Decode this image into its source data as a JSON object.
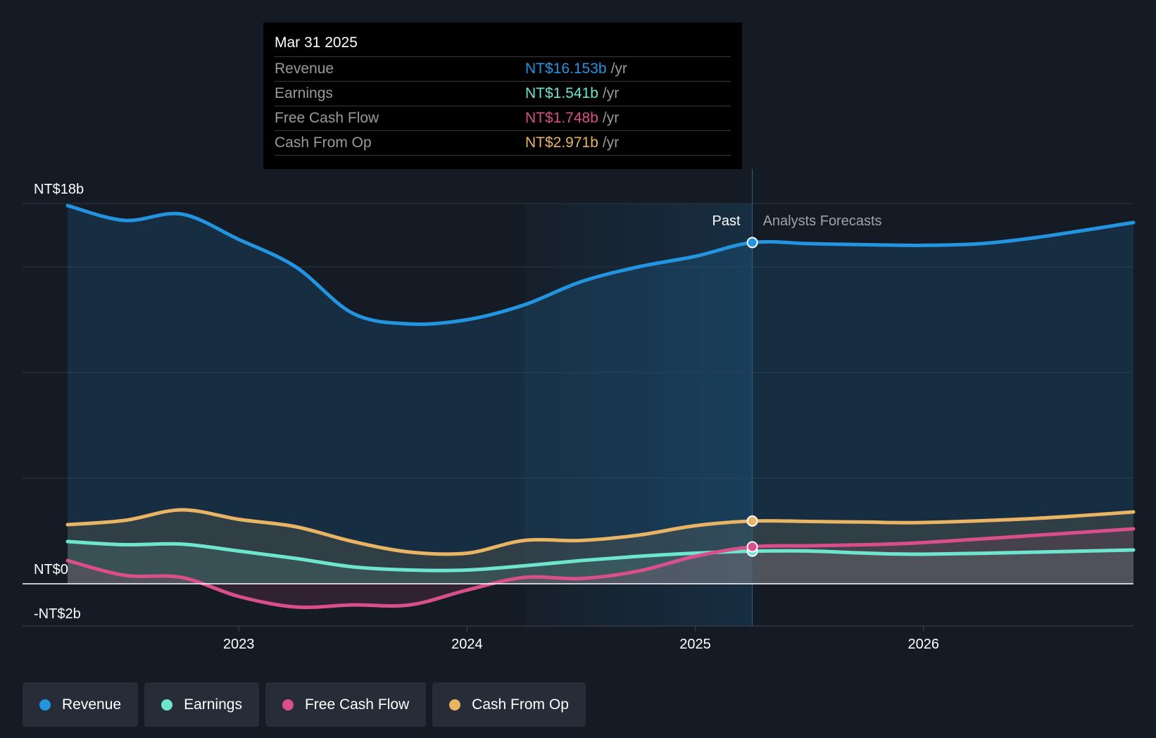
{
  "tooltip": {
    "date": "Mar 31 2025",
    "rows": [
      {
        "label": "Revenue",
        "value": "NT$16.153b",
        "unit": "/yr",
        "color": "#2394df"
      },
      {
        "label": "Earnings",
        "value": "NT$1.541b",
        "unit": "/yr",
        "color": "#6ee5cf"
      },
      {
        "label": "Free Cash Flow",
        "value": "NT$1.748b",
        "unit": "/yr",
        "color": "#d94f8c"
      },
      {
        "label": "Cash From Op",
        "value": "NT$2.971b",
        "unit": "/yr",
        "color": "#e9b464"
      }
    ]
  },
  "chart_data": {
    "type": "line",
    "title": "",
    "xlabel": "",
    "ylabel": "",
    "ylim": [
      -2,
      18
    ],
    "xlim": [
      2022.25,
      2026.92
    ],
    "y_tick_labels": [
      {
        "value": 18,
        "label": "NT$18b"
      },
      {
        "value": 0,
        "label": "NT$0"
      },
      {
        "value": -2,
        "label": "-NT$2b"
      }
    ],
    "gridlines_y": [
      18,
      15,
      10,
      5,
      0,
      -2
    ],
    "x_ticks": [
      {
        "value": 2023.0,
        "label": "2023"
      },
      {
        "value": 2024.0,
        "label": "2024"
      },
      {
        "value": 2025.0,
        "label": "2025"
      },
      {
        "value": 2026.0,
        "label": "2026"
      }
    ],
    "past_label": "Past",
    "forecast_label": "Analysts Forecasts",
    "past_end_x": 2025.25,
    "highlight_start_x": 2024.25,
    "series": [
      {
        "name": "Revenue",
        "color": "#2394df",
        "x": [
          2022.25,
          2022.5,
          2022.75,
          2023.0,
          2023.25,
          2023.5,
          2023.75,
          2024.0,
          2024.25,
          2024.5,
          2024.75,
          2025.0,
          2025.25,
          2025.5,
          2025.75,
          2026.0,
          2026.25,
          2026.5,
          2026.92
        ],
        "values": [
          17.9,
          17.2,
          17.5,
          16.3,
          15.0,
          12.8,
          12.3,
          12.5,
          13.2,
          14.3,
          15.0,
          15.5,
          16.153,
          16.1,
          16.05,
          16.02,
          16.1,
          16.4,
          17.1
        ]
      },
      {
        "name": "Earnings",
        "color": "#6ee5cf",
        "x": [
          2022.25,
          2022.5,
          2022.75,
          2023.0,
          2023.25,
          2023.5,
          2023.75,
          2024.0,
          2024.25,
          2024.5,
          2024.75,
          2025.0,
          2025.25,
          2025.5,
          2025.75,
          2026.0,
          2026.5,
          2026.92
        ],
        "values": [
          2.0,
          1.85,
          1.88,
          1.55,
          1.2,
          0.8,
          0.65,
          0.65,
          0.85,
          1.1,
          1.3,
          1.45,
          1.541,
          1.55,
          1.45,
          1.4,
          1.5,
          1.6
        ]
      },
      {
        "name": "Free Cash Flow",
        "color": "#d94f8c",
        "x": [
          2022.25,
          2022.5,
          2022.75,
          2023.0,
          2023.25,
          2023.5,
          2023.75,
          2024.0,
          2024.25,
          2024.5,
          2024.75,
          2025.0,
          2025.25,
          2025.5,
          2025.75,
          2026.0,
          2026.5,
          2026.92
        ],
        "values": [
          1.1,
          0.4,
          0.3,
          -0.6,
          -1.1,
          -1.0,
          -1.0,
          -0.3,
          0.3,
          0.25,
          0.6,
          1.3,
          1.748,
          1.8,
          1.85,
          1.95,
          2.3,
          2.6
        ]
      },
      {
        "name": "Cash From Op",
        "color": "#e9b464",
        "x": [
          2022.25,
          2022.5,
          2022.75,
          2023.0,
          2023.25,
          2023.5,
          2023.75,
          2024.0,
          2024.25,
          2024.5,
          2024.75,
          2025.0,
          2025.25,
          2025.5,
          2025.75,
          2026.0,
          2026.5,
          2026.92
        ],
        "values": [
          2.8,
          3.0,
          3.5,
          3.05,
          2.7,
          2.0,
          1.5,
          1.45,
          2.05,
          2.05,
          2.3,
          2.75,
          2.971,
          2.95,
          2.92,
          2.9,
          3.1,
          3.4
        ]
      }
    ]
  },
  "legend": [
    {
      "label": "Revenue",
      "color": "#2394df"
    },
    {
      "label": "Earnings",
      "color": "#6ee5cf"
    },
    {
      "label": "Free Cash Flow",
      "color": "#d94f8c"
    },
    {
      "label": "Cash From Op",
      "color": "#e9b464"
    }
  ]
}
